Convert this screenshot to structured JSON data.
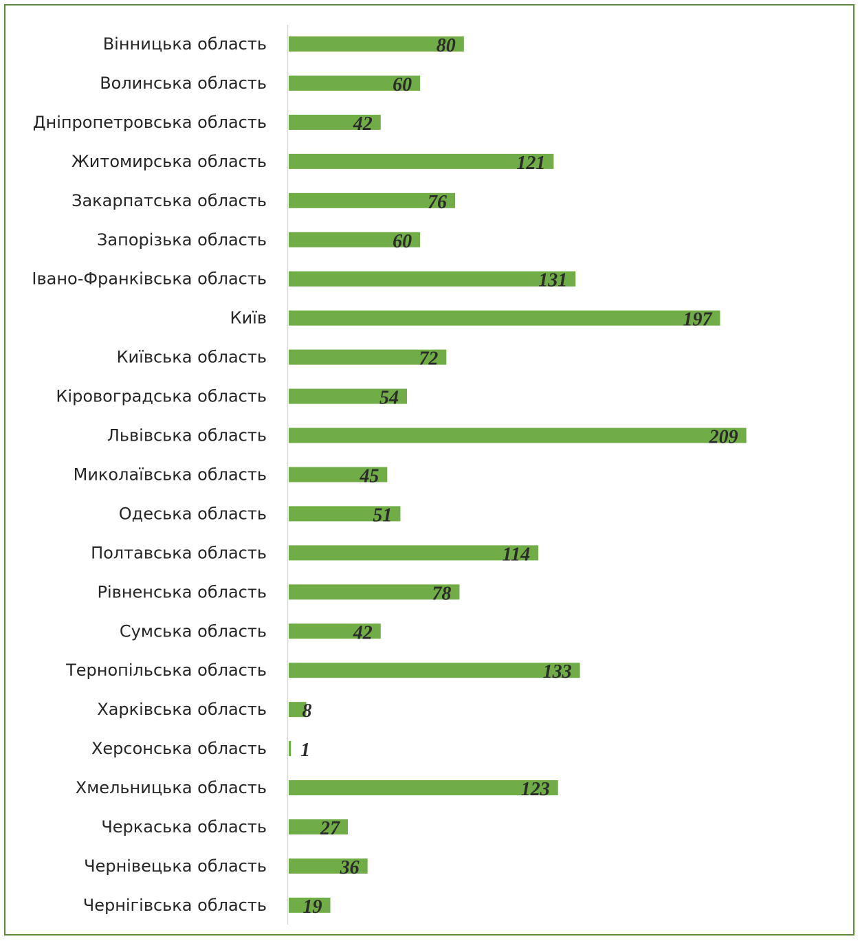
{
  "chart_data": {
    "type": "bar",
    "orientation": "horizontal",
    "categories": [
      "Вінницька область",
      "Волинська область",
      "Дніпропетровська область",
      "Житомирська область",
      "Закарпатська область",
      "Запорізька область",
      "Івано-Франківська область",
      "Київ",
      "Київська область",
      "Кіровоградська область",
      "Львівська область",
      "Миколаївська область",
      "Одеська область",
      "Полтавська область",
      "Рівненська область",
      "Сумська область",
      "Тернопільська область",
      "Харківська область",
      "Херсонська область",
      "Хмельницька область",
      "Черкаська область",
      "Чернівецька область",
      "Чернігівська область"
    ],
    "values": [
      80,
      60,
      42,
      121,
      76,
      60,
      131,
      197,
      72,
      54,
      209,
      45,
      51,
      114,
      78,
      42,
      133,
      8,
      1,
      123,
      27,
      36,
      19
    ],
    "title": "",
    "xlabel": "",
    "ylabel": "",
    "xlim": [
      0,
      209
    ],
    "grid": false,
    "legend": "none",
    "data_labels": "inside-end",
    "colors": {
      "bar": "#70ad47",
      "frame": "#5c8a3a",
      "axis": "#d9d9d9",
      "label_text": "#262626",
      "value_text": "#2b2b2b"
    }
  }
}
